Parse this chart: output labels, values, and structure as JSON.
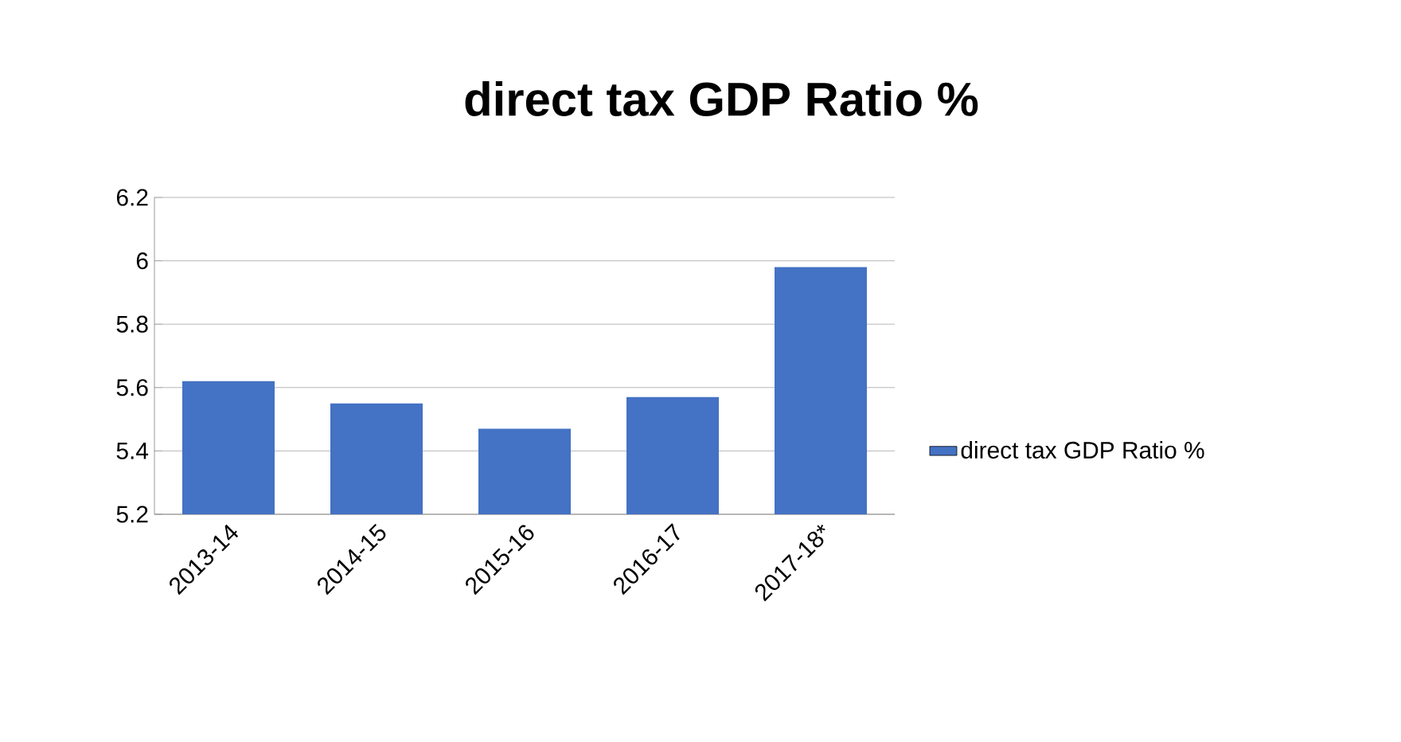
{
  "chart_data": {
    "type": "bar",
    "title": "direct tax GDP Ratio %",
    "categories": [
      "2013-14",
      "2014-15",
      "2015-16",
      "2016-17",
      "2017-18*"
    ],
    "series": [
      {
        "name": "direct tax GDP Ratio %",
        "color": "#4472c4",
        "values": [
          5.62,
          5.55,
          5.47,
          5.57,
          5.98
        ]
      }
    ],
    "ylim": [
      5.2,
      6.2
    ],
    "yticks": [
      5.2,
      5.4,
      5.6,
      5.8,
      6,
      6.2
    ],
    "grid": "y",
    "legend": "right"
  }
}
